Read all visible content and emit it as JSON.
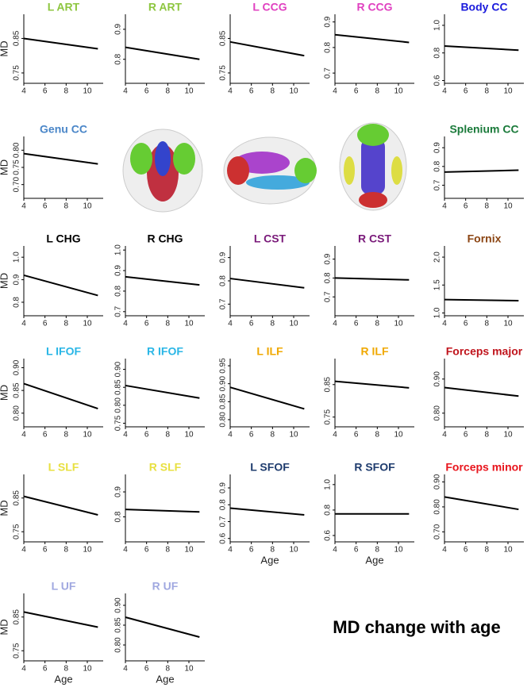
{
  "caption": "MD change with age",
  "chart_data": [
    {
      "type": "line",
      "title": "L ART",
      "title_color": "#8dc63f",
      "y_label": "MD",
      "xlim": [
        4,
        11.5
      ],
      "xticks": [
        4,
        6,
        8,
        10
      ],
      "ylim": [
        0.72,
        0.92
      ],
      "yticks": [
        0.75,
        0.85
      ],
      "x": [
        4,
        11
      ],
      "values": [
        0.85,
        0.82
      ],
      "color": "#000000"
    },
    {
      "type": "line",
      "title": "R ART",
      "title_color": "#8dc63f",
      "xlim": [
        4,
        11.5
      ],
      "xticks": [
        4,
        6,
        8,
        10
      ],
      "ylim": [
        0.72,
        0.95
      ],
      "yticks": [
        0.8,
        0.9
      ],
      "x": [
        4,
        11
      ],
      "values": [
        0.84,
        0.8
      ],
      "color": "#000000"
    },
    {
      "type": "line",
      "title": "L CCG",
      "title_color": "#e040c0",
      "xlim": [
        4,
        11.5
      ],
      "xticks": [
        4,
        6,
        8,
        10
      ],
      "ylim": [
        0.72,
        0.92
      ],
      "yticks": [
        0.75,
        0.85
      ],
      "x": [
        4,
        11
      ],
      "values": [
        0.84,
        0.8
      ],
      "color": "#000000"
    },
    {
      "type": "line",
      "title": "R CCG",
      "title_color": "#e040c0",
      "xlim": [
        4,
        11.5
      ],
      "xticks": [
        4,
        6,
        8,
        10
      ],
      "ylim": [
        0.66,
        0.93
      ],
      "yticks": [
        0.7,
        0.8,
        0.9
      ],
      "x": [
        4,
        11
      ],
      "values": [
        0.85,
        0.82
      ],
      "color": "#000000"
    },
    {
      "type": "line",
      "title": "Body CC",
      "title_color": "#1a1adc",
      "xlim": [
        4,
        11.5
      ],
      "xticks": [
        4,
        6,
        8,
        10
      ],
      "ylim": [
        0.58,
        1.08
      ],
      "yticks": [
        0.6,
        0.8,
        {
          "value": 1,
          "label": "1.0"
        }
      ],
      "x": [
        4,
        11
      ],
      "values": [
        0.85,
        0.82
      ],
      "color": "#000000"
    },
    {
      "type": "line",
      "title": "Genu CC",
      "title_color": "#4a86c8",
      "y_label": "MD",
      "xlim": [
        4,
        11.5
      ],
      "xticks": [
        4,
        6,
        8,
        10
      ],
      "ylim": [
        0.66,
        0.84
      ],
      "yticks": [
        {
          "value": 0.7,
          "label": "0.70"
        },
        0.75,
        {
          "value": 0.8,
          "label": "0.80"
        }
      ],
      "x": [
        4,
        11
      ],
      "values": [
        0.79,
        0.76
      ],
      "color": "#000000"
    },
    {
      "type": "line",
      "title": "Splenium CC",
      "title_color": "#1a7a3a",
      "xlim": [
        4,
        11.5
      ],
      "xticks": [
        4,
        6,
        8,
        10
      ],
      "ylim": [
        0.63,
        0.96
      ],
      "yticks": [
        0.7,
        0.8,
        0.9
      ],
      "x": [
        4,
        11
      ],
      "values": [
        0.77,
        0.78
      ],
      "color": "#000000"
    },
    {
      "type": "line",
      "title": "L CHG",
      "title_color": "#000000",
      "y_label": "MD",
      "xlim": [
        4,
        11.5
      ],
      "xticks": [
        4,
        6,
        8,
        10
      ],
      "ylim": [
        0.74,
        1.05
      ],
      "yticks": [
        0.8,
        0.9,
        {
          "value": 1,
          "label": "1.0"
        }
      ],
      "x": [
        4,
        11
      ],
      "values": [
        0.92,
        0.83
      ],
      "color": "#000000"
    },
    {
      "type": "line",
      "title": "R CHG",
      "title_color": "#000000",
      "xlim": [
        4,
        11.5
      ],
      "xticks": [
        4,
        6,
        8,
        10
      ],
      "ylim": [
        0.68,
        1.02
      ],
      "yticks": [
        0.7,
        0.8,
        0.9,
        {
          "value": 1,
          "label": "1.0"
        }
      ],
      "x": [
        4,
        11
      ],
      "values": [
        0.87,
        0.83
      ],
      "color": "#000000"
    },
    {
      "type": "line",
      "title": "L CST",
      "title_color": "#7a1a7a",
      "xlim": [
        4,
        11.5
      ],
      "xticks": [
        4,
        6,
        8,
        10
      ],
      "ylim": [
        0.65,
        0.95
      ],
      "yticks": [
        0.7,
        0.8,
        0.9
      ],
      "x": [
        4,
        11
      ],
      "values": [
        0.81,
        0.77
      ],
      "color": "#000000"
    },
    {
      "type": "line",
      "title": "R CST",
      "title_color": "#7a1a7a",
      "xlim": [
        4,
        11.5
      ],
      "xticks": [
        4,
        6,
        8,
        10
      ],
      "ylim": [
        0.6,
        0.97
      ],
      "yticks": [
        0.7,
        0.8,
        0.9
      ],
      "x": [
        4,
        11
      ],
      "values": [
        0.8,
        0.79
      ],
      "color": "#000000"
    },
    {
      "type": "line",
      "title": "Fornix",
      "title_color": "#8b4513",
      "xlim": [
        4,
        11.5
      ],
      "xticks": [
        4,
        6,
        8,
        10
      ],
      "ylim": [
        0.95,
        2.2
      ],
      "yticks": [
        {
          "value": 1,
          "label": "1.0"
        },
        1.5,
        {
          "value": 2,
          "label": "2.0"
        }
      ],
      "x": [
        4,
        11
      ],
      "values": [
        1.24,
        1.22
      ],
      "color": "#000000"
    },
    {
      "type": "line",
      "title": "L IFOF",
      "title_color": "#29b6e6",
      "y_label": "MD",
      "xlim": [
        4,
        11.5
      ],
      "xticks": [
        4,
        6,
        8,
        10
      ],
      "ylim": [
        0.77,
        0.92
      ],
      "yticks": [
        {
          "value": 0.8,
          "label": "0.80"
        },
        0.85,
        {
          "value": 0.9,
          "label": "0.90"
        }
      ],
      "x": [
        4,
        11
      ],
      "values": [
        0.865,
        0.81
      ],
      "color": "#000000"
    },
    {
      "type": "line",
      "title": "R IFOF",
      "title_color": "#29b6e6",
      "xlim": [
        4,
        11.5
      ],
      "xticks": [
        4,
        6,
        8,
        10
      ],
      "ylim": [
        0.74,
        0.93
      ],
      "yticks": [
        0.75,
        {
          "value": 0.8,
          "label": "0.80"
        },
        0.85,
        {
          "value": 0.9,
          "label": "0.90"
        }
      ],
      "x": [
        4,
        11
      ],
      "values": [
        0.855,
        0.82
      ],
      "color": "#000000"
    },
    {
      "type": "line",
      "title": "L ILF",
      "title_color": "#f0a800",
      "xlim": [
        4,
        11.5
      ],
      "xticks": [
        4,
        6,
        8,
        10
      ],
      "ylim": [
        0.78,
        0.97
      ],
      "yticks": [
        {
          "value": 0.8,
          "label": "0.80"
        },
        0.85,
        {
          "value": 0.9,
          "label": "0.90"
        },
        0.95
      ],
      "x": [
        4,
        11
      ],
      "values": [
        0.89,
        0.83
      ],
      "color": "#000000"
    },
    {
      "type": "line",
      "title": "R ILF",
      "title_color": "#f0a800",
      "xlim": [
        4,
        11.5
      ],
      "xticks": [
        4,
        6,
        8,
        10
      ],
      "ylim": [
        0.72,
        0.93
      ],
      "yticks": [
        0.75,
        0.85
      ],
      "x": [
        4,
        11
      ],
      "values": [
        0.86,
        0.84
      ],
      "color": "#000000"
    },
    {
      "type": "line",
      "title": "Forceps major",
      "title_color": "#c0141c",
      "xlim": [
        4,
        11.5
      ],
      "xticks": [
        4,
        6,
        8,
        10
      ],
      "ylim": [
        0.76,
        0.96
      ],
      "yticks": [
        {
          "value": 0.8,
          "label": "0.80"
        },
        {
          "value": 0.9,
          "label": "0.90"
        }
      ],
      "x": [
        4,
        11
      ],
      "values": [
        0.875,
        0.85
      ],
      "color": "#000000"
    },
    {
      "type": "line",
      "title": "L SLF",
      "title_color": "#e8e040",
      "y_label": "MD",
      "xlim": [
        4,
        11.5
      ],
      "xticks": [
        4,
        6,
        8,
        10
      ],
      "ylim": [
        0.72,
        0.92
      ],
      "yticks": [
        0.75,
        0.85
      ],
      "x": [
        4,
        11
      ],
      "values": [
        0.855,
        0.8
      ],
      "color": "#000000"
    },
    {
      "type": "line",
      "title": "R SLF",
      "title_color": "#e8e040",
      "xlim": [
        4,
        11.5
      ],
      "xticks": [
        4,
        6,
        8,
        10
      ],
      "ylim": [
        0.7,
        0.97
      ],
      "yticks": [
        0.8,
        0.9
      ],
      "x": [
        4,
        11
      ],
      "values": [
        0.83,
        0.82
      ],
      "color": "#000000"
    },
    {
      "type": "line",
      "title": "L SFOF",
      "title_color": "#1f3c6e",
      "x_label": "Age",
      "xlim": [
        4,
        11.5
      ],
      "xticks": [
        4,
        6,
        8,
        10
      ],
      "ylim": [
        0.58,
        0.98
      ],
      "yticks": [
        0.6,
        0.7,
        0.8,
        0.9
      ],
      "x": [
        4,
        11
      ],
      "values": [
        0.78,
        0.74
      ],
      "color": "#000000"
    },
    {
      "type": "line",
      "title": "R SFOF",
      "title_color": "#1f3c6e",
      "x_label": "Age",
      "xlim": [
        4,
        11.5
      ],
      "xticks": [
        4,
        6,
        8,
        10
      ],
      "ylim": [
        0.55,
        1.08
      ],
      "yticks": [
        0.6,
        0.8,
        {
          "value": 1,
          "label": "1.0"
        }
      ],
      "x": [
        4,
        11
      ],
      "values": [
        0.77,
        0.77
      ],
      "color": "#000000"
    },
    {
      "type": "line",
      "title": "Forceps minor",
      "title_color": "#e8141c",
      "xlim": [
        4,
        11.5
      ],
      "xticks": [
        4,
        6,
        8,
        10
      ],
      "ylim": [
        0.66,
        0.93
      ],
      "yticks": [
        {
          "value": 0.7,
          "label": "0.70"
        },
        {
          "value": 0.8,
          "label": "0.80"
        },
        {
          "value": 0.9,
          "label": "0.90"
        }
      ],
      "x": [
        4,
        11
      ],
      "values": [
        0.84,
        0.79
      ],
      "color": "#000000"
    },
    {
      "type": "line",
      "title": "L UF",
      "title_color": "#a0a8e0",
      "y_label": "MD",
      "x_label": "Age",
      "xlim": [
        4,
        11.5
      ],
      "xticks": [
        4,
        6,
        8,
        10
      ],
      "ylim": [
        0.72,
        0.92
      ],
      "yticks": [
        0.75,
        0.85
      ],
      "x": [
        4,
        11
      ],
      "values": [
        0.865,
        0.82
      ],
      "color": "#000000"
    },
    {
      "type": "line",
      "title": "R UF",
      "title_color": "#a0a8e0",
      "x_label": "Age",
      "xlim": [
        4,
        11.5
      ],
      "xticks": [
        4,
        6,
        8,
        10
      ],
      "ylim": [
        0.76,
        0.93
      ],
      "yticks": [
        {
          "value": 0.8,
          "label": "0.80"
        },
        0.85,
        {
          "value": 0.9,
          "label": "0.90"
        }
      ],
      "x": [
        4,
        11
      ],
      "values": [
        0.87,
        0.82
      ],
      "color": "#000000"
    }
  ]
}
